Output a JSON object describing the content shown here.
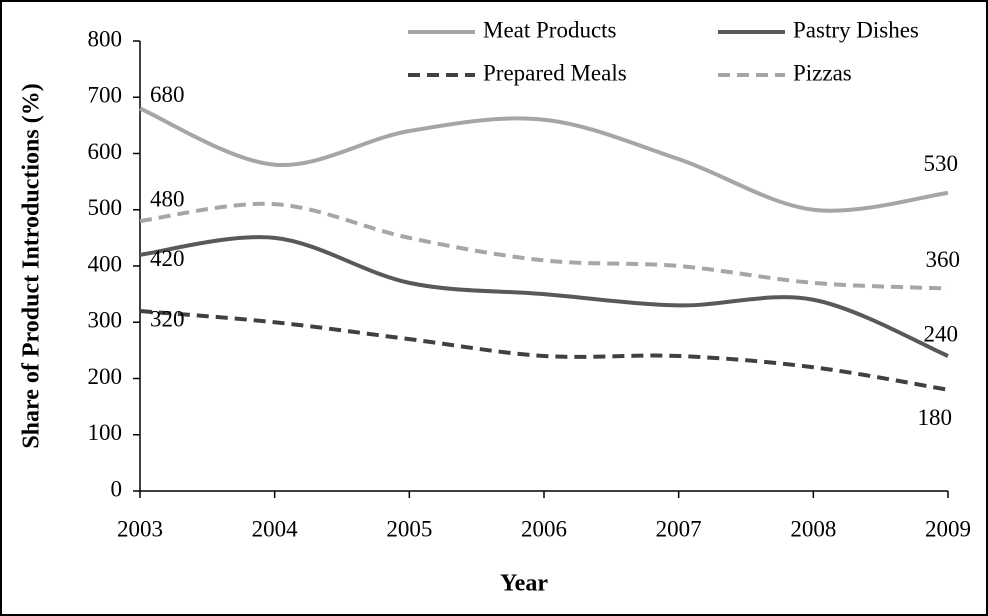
{
  "chart_data": {
    "type": "line",
    "x_label": "Year",
    "y_label": "Share of Product Introductions (%)",
    "x": [
      2003,
      2004,
      2005,
      2006,
      2007,
      2008,
      2009
    ],
    "xlim": [
      2003,
      2009
    ],
    "xticks": [
      2003,
      2004,
      2005,
      2006,
      2007,
      2008,
      2009
    ],
    "ylim": [
      0,
      800
    ],
    "yticks": [
      0,
      100,
      200,
      300,
      400,
      500,
      600,
      700,
      800
    ],
    "grid": false,
    "legend": "top",
    "series": [
      {
        "name": "Meat Products",
        "color": "#a6a6a6",
        "dash": "solid",
        "values": [
          680,
          580,
          640,
          660,
          590,
          500,
          530
        ]
      },
      {
        "name": "Pastry Dishes",
        "color": "#595959",
        "dash": "solid",
        "values": [
          420,
          450,
          370,
          350,
          330,
          340,
          240
        ]
      },
      {
        "name": "Prepared Meals",
        "color": "#404040",
        "dash": "dashed",
        "values": [
          320,
          300,
          270,
          240,
          240,
          220,
          180
        ]
      },
      {
        "name": "Pizzas",
        "color": "#a6a6a6",
        "dash": "dashed",
        "values": [
          480,
          510,
          450,
          410,
          400,
          370,
          360
        ]
      }
    ]
  }
}
